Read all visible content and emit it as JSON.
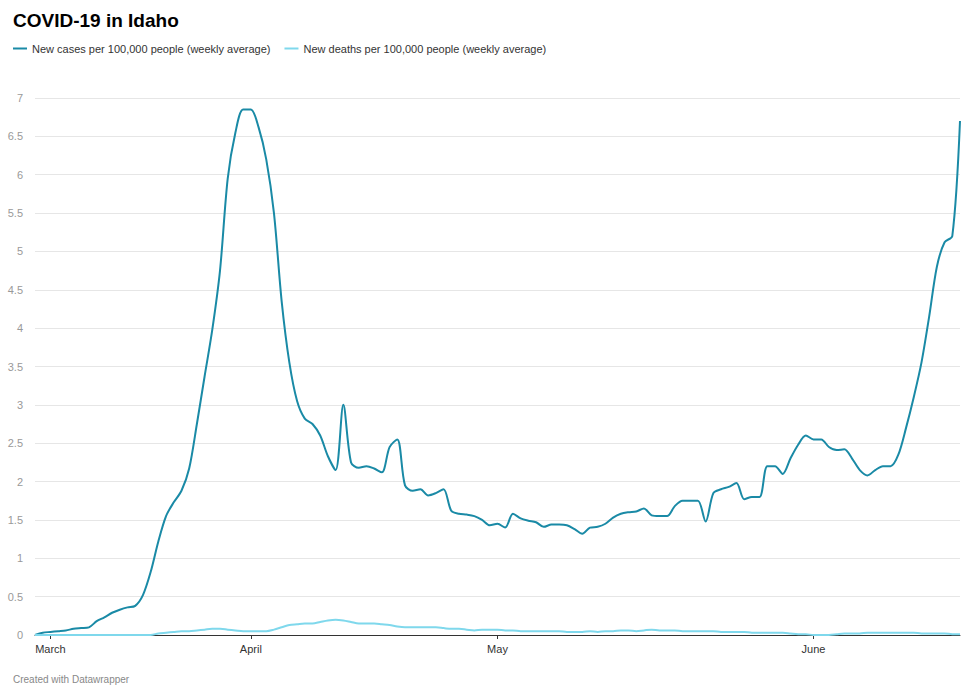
{
  "chart_data": {
    "type": "line",
    "title": "COVID-19 in Idaho",
    "caption": "Created with Datawrapper",
    "legend": "top-left",
    "grid": true,
    "marker": "none",
    "line_style": "solid",
    "categories": [
      null,
      null,
      "March",
      null,
      null,
      null,
      null,
      null,
      null,
      null,
      null,
      null,
      null,
      null,
      null,
      null,
      null,
      null,
      null,
      null,
      null,
      null,
      null,
      null,
      null,
      null,
      null,
      null,
      "April",
      null,
      null,
      null,
      null,
      null,
      null,
      null,
      null,
      null,
      null,
      null,
      null,
      null,
      null,
      null,
      null,
      null,
      null,
      null,
      null,
      null,
      null,
      null,
      null,
      null,
      null,
      null,
      null,
      null,
      null,
      null,
      "May",
      null,
      null,
      null,
      null,
      null,
      null,
      null,
      null,
      null,
      null,
      null,
      null,
      null,
      null,
      null,
      null,
      null,
      null,
      null,
      null,
      null,
      null,
      null,
      null,
      null,
      null,
      null,
      null,
      null,
      null,
      null,
      null,
      null,
      null,
      null,
      null,
      null,
      null,
      null,
      null,
      "June",
      null,
      null,
      null,
      null,
      null,
      null,
      null,
      null,
      null,
      null,
      null,
      null,
      null,
      null,
      null,
      null,
      null,
      null,
      null
    ],
    "ylim": [
      0,
      7
    ],
    "yticks": [
      0,
      0.5,
      1,
      1.5,
      2,
      2.5,
      3,
      3.5,
      4,
      4.5,
      5,
      5.5,
      6,
      6.5,
      7
    ],
    "series": [
      {
        "name": "New cases per 100,000 people (weekly average)",
        "color": "#1a8aa6",
        "values": [
          0,
          0.03,
          0.04,
          0.05,
          0.06,
          0.08,
          0.09,
          0.1,
          0.18,
          0.23,
          0.29,
          0.33,
          0.36,
          0.38,
          0.52,
          0.82,
          1.22,
          1.55,
          1.73,
          1.88,
          2.17,
          2.75,
          3.37,
          3.98,
          4.75,
          5.95,
          6.55,
          6.85,
          6.85,
          6.62,
          6.2,
          5.5,
          4.35,
          3.55,
          3.05,
          2.82,
          2.75,
          2.6,
          2.33,
          2.15,
          3.0,
          2.25,
          2.18,
          2.2,
          2.17,
          2.12,
          2.45,
          2.55,
          1.95,
          1.88,
          1.9,
          1.82,
          1.85,
          1.9,
          1.62,
          1.58,
          1.57,
          1.55,
          1.5,
          1.43,
          1.45,
          1.4,
          1.58,
          1.52,
          1.49,
          1.47,
          1.41,
          1.44,
          1.44,
          1.43,
          1.38,
          1.32,
          1.4,
          1.41,
          1.45,
          1.53,
          1.58,
          1.6,
          1.61,
          1.65,
          1.56,
          1.55,
          1.55,
          1.68,
          1.75,
          1.75,
          1.75,
          1.48,
          1.85,
          1.9,
          1.93,
          1.98,
          1.77,
          1.8,
          1.8,
          2.2,
          2.2,
          2.1,
          2.3,
          2.48,
          2.6,
          2.55,
          2.55,
          2.45,
          2.41,
          2.42,
          2.3,
          2.15,
          2.08,
          2.15,
          2.2,
          2.2,
          2.35,
          2.7,
          3.1,
          3.55,
          4.15,
          4.8,
          5.12,
          5.2,
          6.7
        ]
      },
      {
        "name": "New deaths per 100,000 people (weekly average)",
        "color": "#7fd8ec",
        "values": [
          0,
          0,
          0,
          0,
          0,
          0,
          0,
          0,
          0,
          0,
          0,
          0,
          0,
          0,
          0,
          0,
          0.02,
          0.03,
          0.04,
          0.05,
          0.05,
          0.06,
          0.07,
          0.08,
          0.08,
          0.07,
          0.06,
          0.05,
          0.05,
          0.05,
          0.05,
          0.07,
          0.1,
          0.13,
          0.14,
          0.15,
          0.15,
          0.17,
          0.19,
          0.2,
          0.19,
          0.17,
          0.15,
          0.15,
          0.15,
          0.14,
          0.13,
          0.11,
          0.1,
          0.1,
          0.1,
          0.1,
          0.1,
          0.09,
          0.08,
          0.08,
          0.07,
          0.06,
          0.07,
          0.07,
          0.07,
          0.06,
          0.06,
          0.05,
          0.05,
          0.05,
          0.05,
          0.05,
          0.05,
          0.04,
          0.04,
          0.04,
          0.05,
          0.04,
          0.05,
          0.05,
          0.06,
          0.06,
          0.05,
          0.06,
          0.07,
          0.06,
          0.06,
          0.06,
          0.05,
          0.05,
          0.05,
          0.05,
          0.05,
          0.04,
          0.04,
          0.04,
          0.04,
          0.03,
          0.03,
          0.03,
          0.03,
          0.03,
          0.02,
          0.01,
          0.01,
          0,
          0,
          0,
          0.01,
          0.02,
          0.02,
          0.02,
          0.03,
          0.03,
          0.03,
          0.03,
          0.03,
          0.03,
          0.03,
          0.02,
          0.02,
          0.02,
          0.02,
          0.01,
          0.01
        ]
      }
    ]
  }
}
